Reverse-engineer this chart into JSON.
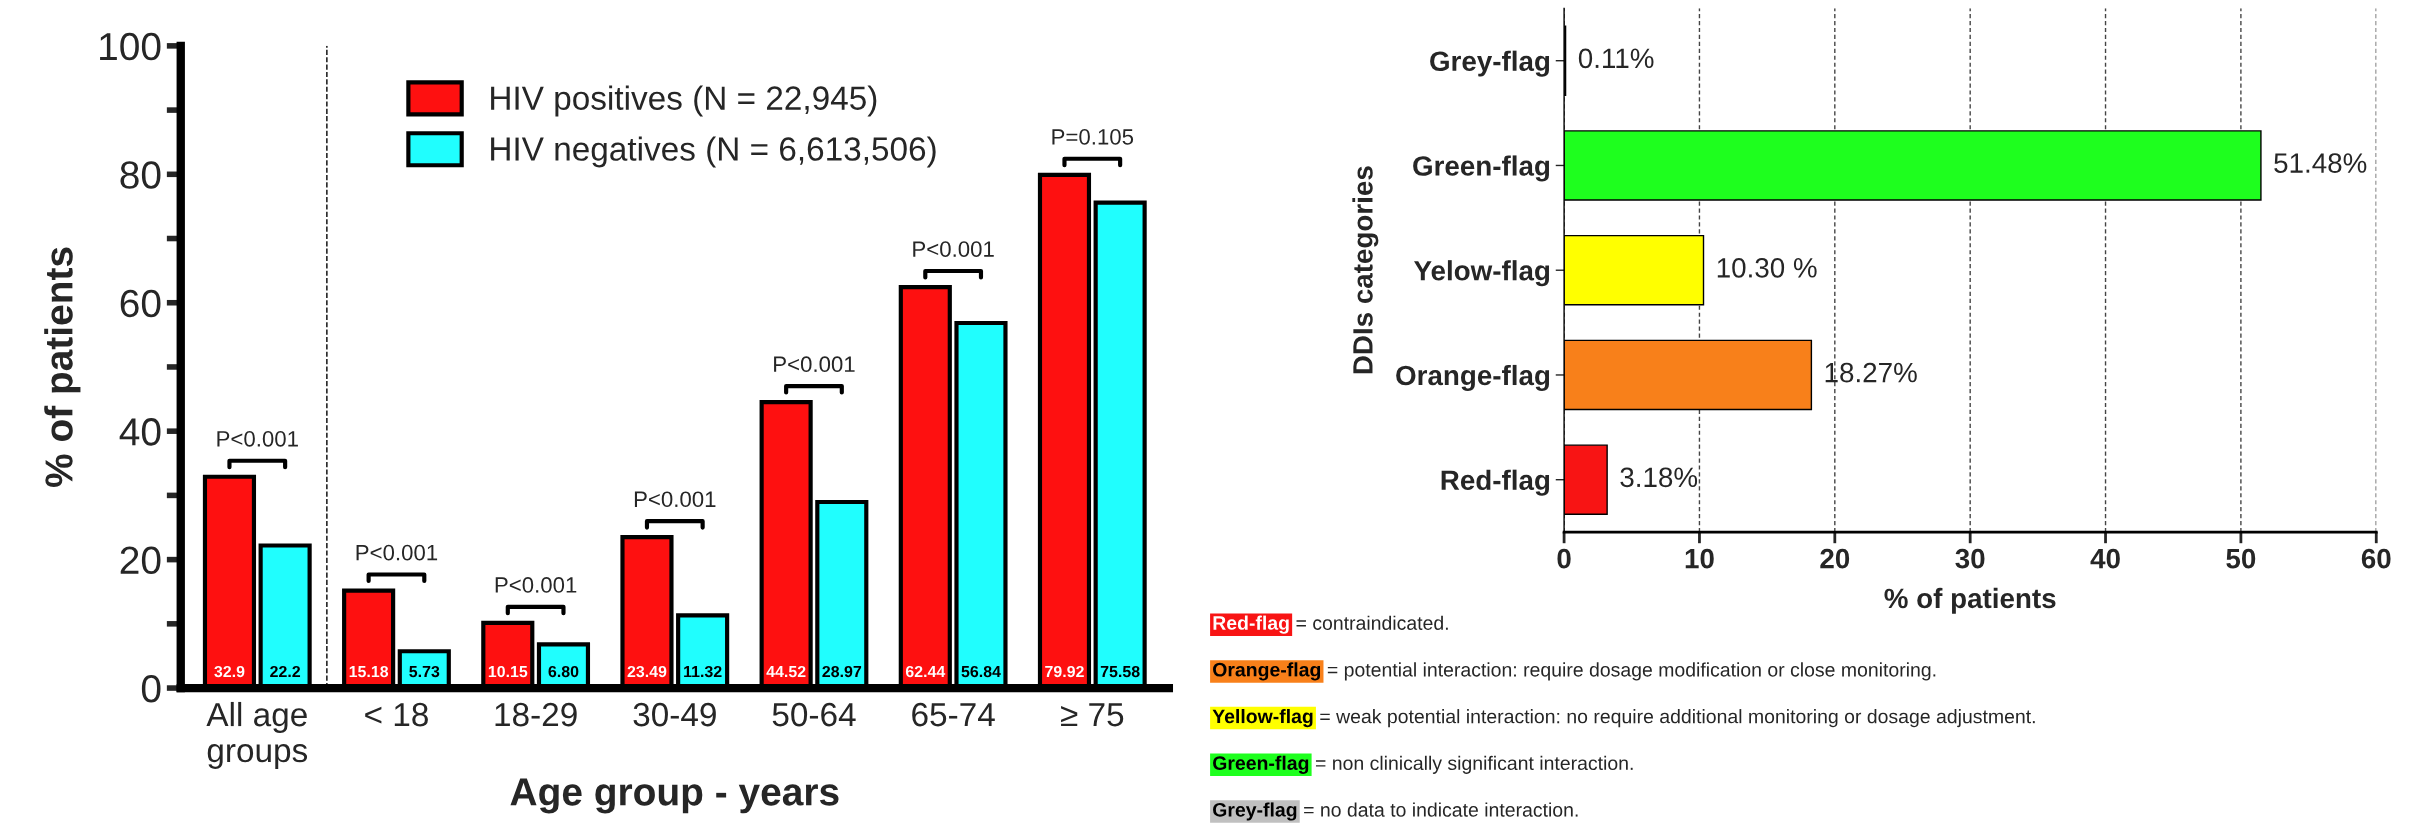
{
  "chart_data": [
    {
      "type": "bar",
      "xlabel": "Age group - years",
      "ylabel": "% of patients",
      "categories": [
        "All age\ngroups",
        "< 18",
        "18-29",
        "30-49",
        "50-64",
        "65-74",
        "≥ 75"
      ],
      "series": [
        {
          "name": "HIV positives (N = 22,945)",
          "color": "#fe1010",
          "values": [
            32.9,
            15.18,
            10.15,
            23.49,
            44.52,
            62.44,
            79.92
          ],
          "value_labels": [
            "32.9",
            "15.18",
            "10.15",
            "23.49",
            "44.52",
            "62.44",
            "79.92"
          ]
        },
        {
          "name": "HIV negatives (N = 6,613,506)",
          "color": "#20fefe",
          "values": [
            22.2,
            5.73,
            6.8,
            11.32,
            28.97,
            56.84,
            75.58
          ],
          "value_labels": [
            "22.2",
            "5.73",
            "6.80",
            "11.32",
            "28.97",
            "56.84",
            "75.58"
          ]
        }
      ],
      "ylim": [
        0,
        100
      ],
      "yticks": [
        0,
        {
          "value": 10,
          "label": null
        },
        20,
        {
          "value": 30,
          "label": null
        },
        40,
        {
          "value": 50,
          "label": null
        },
        60,
        {
          "value": 70,
          "label": null
        },
        80,
        {
          "value": 90,
          "label": null
        },
        100
      ],
      "annotations": [
        "P<0.001",
        "P<0.001",
        "P<0.001",
        "P<0.001",
        "P<0.001",
        "P<0.001",
        "P=0.105"
      ],
      "legend": "top",
      "grid": false
    },
    {
      "type": "bar",
      "orientation": "horizontal",
      "xlabel": "% of patients",
      "ylabel": "DDIs categories",
      "categories": [
        "Grey-flag",
        "Green-flag",
        "Yelow-flag",
        "Orange-flag",
        "Red-flag"
      ],
      "values": [
        0.11,
        51.48,
        10.3,
        18.27,
        3.18
      ],
      "colors": [
        "#c0c0c0",
        "#1eff1e",
        "#ffff00",
        "#f8801a",
        "#f81414"
      ],
      "value_labels": [
        "0.11%",
        "51.48%",
        "10.30 %",
        "18.27%",
        "3.18%"
      ],
      "xlim": [
        0,
        60
      ],
      "xticks": [
        0,
        10,
        20,
        30,
        40,
        50,
        60
      ],
      "grid": "x",
      "annotations": [
        "Red-flag",
        "= contraindicated.",
        "Orange-flag",
        "= potential interaction: require dosage modification or close monitoring.",
        "Yellow-flag",
        "= weak potential interaction: no require additional monitoring or dosage adjustment.",
        "Green-flag",
        "= non clinically significant interaction.",
        "Grey-flag",
        "= no data to indicate interaction."
      ]
    }
  ]
}
